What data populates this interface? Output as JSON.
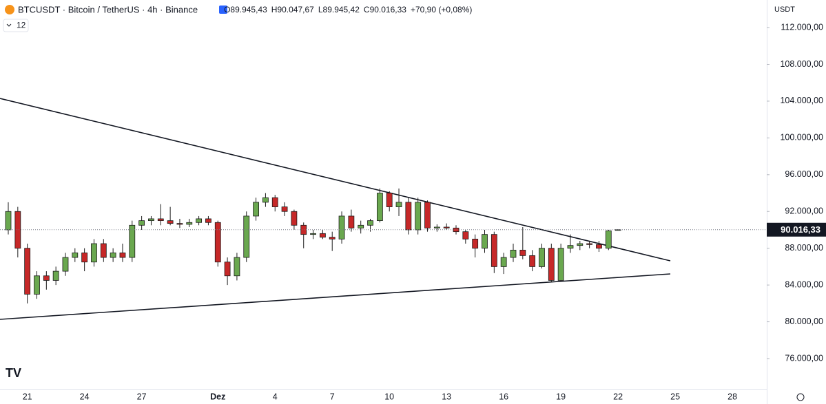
{
  "chart_data": {
    "type": "candlestick",
    "title": "BTCUSDT · Bitcoin / TetherUS · 4h · Binance",
    "ohlc": [
      "O89.945,43",
      "H90.047,67",
      "L89.945,42",
      "C90.016,33",
      "+70,90 (+0,08%)"
    ],
    "indicator_count": 12,
    "currency": "USDT",
    "categories": [
      null,
      null,
      "21",
      null,
      null,
      null,
      null,
      null,
      "24",
      null,
      null,
      null,
      null,
      null,
      "27",
      null,
      null,
      null,
      null,
      null,
      null,
      null,
      "Dez",
      null,
      null,
      null,
      null,
      null,
      "4",
      null,
      null,
      null,
      null,
      null,
      "7",
      null,
      null,
      null,
      null,
      null,
      "10",
      null,
      null,
      null,
      null,
      null,
      "13",
      null,
      null,
      null,
      null,
      null,
      "16",
      null,
      null,
      null,
      null,
      null,
      "19",
      null,
      null,
      null,
      null,
      null,
      "22",
      null,
      null,
      null,
      null,
      null,
      "25",
      null,
      null,
      null,
      null,
      null,
      "28"
    ],
    "open": [
      90000,
      92000,
      88000,
      83000,
      85000,
      84500,
      85500,
      87000,
      87500,
      86500,
      88500,
      87000,
      87500,
      87000,
      90500,
      91000,
      91200,
      91000,
      90700,
      90600,
      90800,
      91200,
      90800,
      86500,
      85000,
      87000,
      91500,
      93000,
      93500,
      92500,
      92000,
      90500,
      89500,
      89600,
      89200,
      89000,
      91500,
      90200,
      90500,
      91000,
      94000,
      92500,
      93000,
      90000,
      93000,
      90200,
      90300,
      90200,
      89800,
      89000,
      88000,
      89500,
      86000,
      87000,
      87800,
      87200,
      86000,
      88000,
      84500,
      88000,
      88300,
      88500,
      88400,
      88000,
      89945.43,
      null,
      null,
      null,
      null,
      null,
      null,
      null,
      null,
      null,
      null,
      null,
      null
    ],
    "high": [
      93000,
      92500,
      88500,
      85500,
      85500,
      86000,
      87500,
      88000,
      88000,
      89000,
      89000,
      88000,
      88500,
      91000,
      91500,
      91500,
      92800,
      92500,
      91200,
      91200,
      91500,
      91500,
      91000,
      87000,
      87500,
      92000,
      93500,
      94000,
      93800,
      93000,
      92200,
      90800,
      90000,
      90000,
      89800,
      92000,
      92200,
      91000,
      91200,
      94500,
      94200,
      94500,
      93500,
      93500,
      93200,
      90600,
      90700,
      90500,
      90000,
      89500,
      90000,
      89800,
      87500,
      88500,
      90300,
      87800,
      88500,
      88500,
      88500,
      89500,
      88800,
      88800,
      88800,
      90000,
      90047.67,
      null,
      null,
      null,
      null,
      null,
      null,
      null,
      null,
      null,
      null,
      null,
      null
    ],
    "low": [
      89500,
      87000,
      82000,
      82500,
      83500,
      84000,
      85000,
      86500,
      85500,
      86000,
      86500,
      86500,
      86500,
      86500,
      90000,
      90500,
      90500,
      90500,
      90200,
      90300,
      90500,
      90500,
      86000,
      84000,
      84500,
      86500,
      91000,
      92500,
      92000,
      91500,
      90000,
      88000,
      89000,
      89000,
      87700,
      88500,
      89800,
      89600,
      89800,
      90800,
      92000,
      91500,
      89500,
      89500,
      89800,
      89800,
      90000,
      89500,
      88500,
      87000,
      87500,
      85300,
      85200,
      86500,
      86800,
      85500,
      85800,
      84300,
      84400,
      87500,
      87800,
      88000,
      87600,
      87800,
      89945.42,
      null,
      null,
      null,
      null,
      null,
      null,
      null,
      null,
      null,
      null,
      null,
      null
    ],
    "close": [
      92000,
      88000,
      83000,
      85000,
      84500,
      85500,
      87000,
      87500,
      86500,
      88500,
      87000,
      87500,
      87000,
      90500,
      91000,
      91200,
      91000,
      90700,
      90600,
      90800,
      91200,
      90800,
      86500,
      85000,
      87000,
      91500,
      93000,
      93500,
      92500,
      92000,
      90500,
      89500,
      89600,
      89200,
      89000,
      91500,
      90200,
      90500,
      91000,
      94000,
      92500,
      93000,
      90000,
      93000,
      90200,
      90300,
      90200,
      89800,
      89000,
      88000,
      89500,
      86000,
      87000,
      87800,
      87200,
      86000,
      88000,
      84500,
      88000,
      88300,
      88500,
      88400,
      88000,
      89900,
      90016.33,
      null,
      null,
      null,
      null,
      null,
      null,
      null,
      null,
      null,
      null,
      null,
      null
    ],
    "up_color": "#6aa84f",
    "down_color": "#c62828",
    "border_color": "#1b1b1b",
    "last_price": {
      "value": 90016.33,
      "label": "90.016,33"
    },
    "ylim": [
      73080,
      115000
    ],
    "yticks": [
      {
        "value": 76000,
        "label": "76.000,00"
      },
      {
        "value": 80000,
        "label": "80.000,00"
      },
      {
        "value": 84000,
        "label": "84.000,00"
      },
      {
        "value": 88000,
        "label": "88.000,00"
      },
      {
        "value": 92000,
        "label": "92.000,00"
      },
      {
        "value": 96000,
        "label": "96.000,00"
      },
      {
        "value": 100000,
        "label": "100.000,00"
      },
      {
        "value": 104000,
        "label": "104.000,00"
      },
      {
        "value": 108000,
        "label": "108.000,00"
      },
      {
        "value": 112000,
        "label": "112.000,00"
      }
    ]
  }
}
